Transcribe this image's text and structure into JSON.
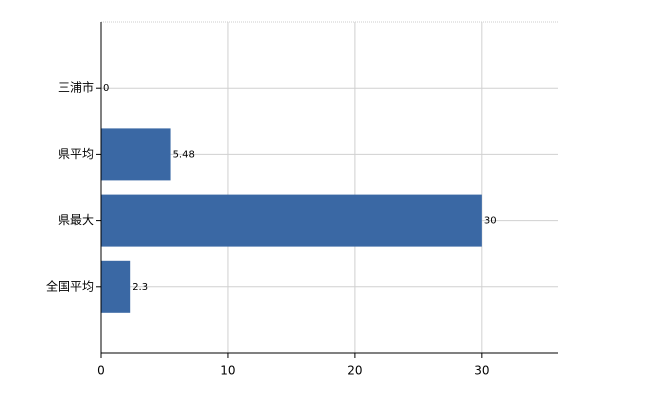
{
  "chart_data": {
    "type": "bar",
    "orientation": "horizontal",
    "categories": [
      "三浦市",
      "県平均",
      "県最大",
      "全国平均"
    ],
    "values": [
      0,
      5.48,
      30,
      2.3
    ],
    "color": "#3a68a4",
    "xlim": [
      0,
      36
    ],
    "xticks": [
      0,
      10,
      20,
      30
    ],
    "grid": true
  }
}
